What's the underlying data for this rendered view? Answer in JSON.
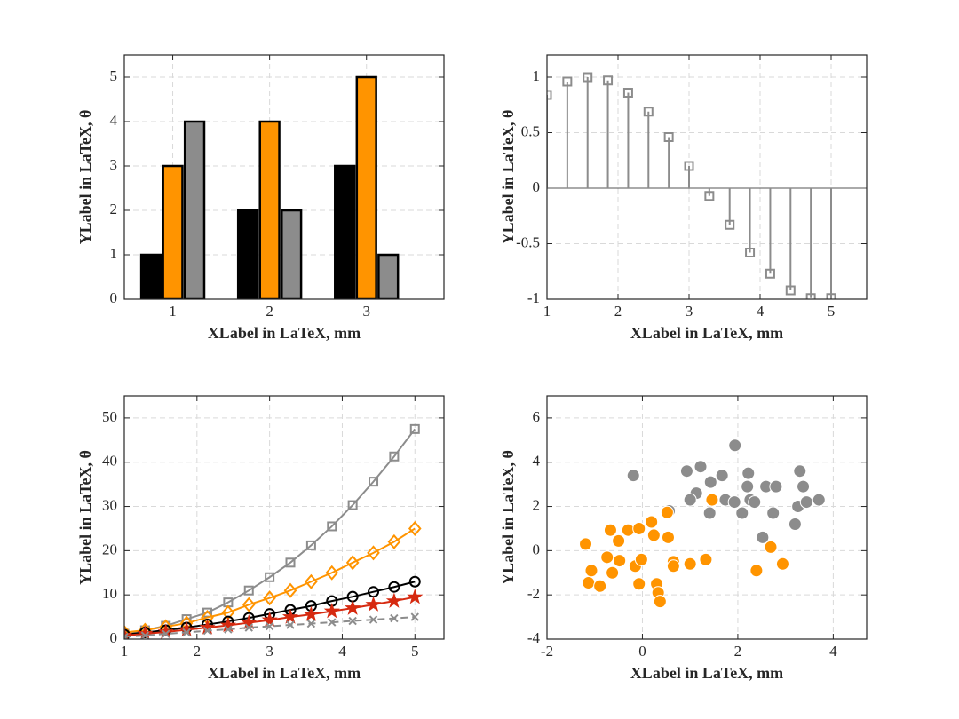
{
  "chart_data": [
    {
      "type": "bar",
      "xlabel": "XLabel in LaTeX, mm",
      "ylabel": "YLabel in LaTeX, θ",
      "x": [
        1,
        2,
        3
      ],
      "series": [
        {
          "color": "#000000",
          "values": [
            1,
            2,
            3
          ]
        },
        {
          "color": "#ff9400",
          "values": [
            3,
            4,
            5
          ]
        },
        {
          "color": "#8c8c8c",
          "values": [
            4,
            2,
            1
          ]
        }
      ],
      "xlim": [
        0.5,
        3.8
      ],
      "ylim": [
        0,
        5.5
      ],
      "xticks": [
        1,
        2,
        3
      ],
      "yticks": [
        0,
        1,
        2,
        3,
        4,
        5
      ],
      "grid": true
    },
    {
      "type": "stem",
      "xlabel": "XLabel in LaTeX, mm",
      "ylabel": "YLabel in LaTeX, θ",
      "color": "#8c8c8c",
      "marker": "square",
      "x": [
        1,
        1.2857,
        1.5714,
        1.8571,
        2.1429,
        2.4286,
        2.7143,
        3,
        3.2857,
        3.5714,
        3.8571,
        4.1429,
        4.4286,
        4.7143,
        5
      ],
      "values": [
        0.84,
        0.96,
        1.0,
        0.97,
        0.86,
        0.69,
        0.46,
        0.2,
        -0.07,
        -0.33,
        -0.58,
        -0.77,
        -0.92,
        -0.99,
        -0.99
      ],
      "xlim": [
        1,
        5.5
      ],
      "ylim": [
        -1,
        1.2
      ],
      "xticks": [
        1,
        2,
        3,
        4,
        5
      ],
      "yticks": [
        -1,
        -0.5,
        0,
        0.5,
        1
      ],
      "grid": true
    },
    {
      "type": "line",
      "xlabel": "XLabel in LaTeX, mm",
      "ylabel": "YLabel in LaTeX, θ",
      "x": [
        1,
        1.2857,
        1.5714,
        1.8571,
        2.1429,
        2.4286,
        2.7143,
        3,
        3.2857,
        3.5714,
        3.8571,
        4.1429,
        4.4286,
        4.7143,
        5
      ],
      "series": [
        {
          "color": "#8c8c8c",
          "marker": "square",
          "dash": "solid",
          "values": [
            1.2,
            2,
            3,
            4.5,
            6,
            8.3,
            11,
            14,
            17.3,
            21.2,
            25.5,
            30.3,
            35.6,
            41.3,
            47.5
          ]
        },
        {
          "color": "#ff9400",
          "marker": "diamond",
          "dash": "solid",
          "values": [
            1.5,
            2,
            2.8,
            3.6,
            4.9,
            6,
            7.8,
            9.3,
            11,
            13,
            15,
            17.3,
            19.5,
            22,
            25
          ]
        },
        {
          "color": "#000000",
          "marker": "circle",
          "dash": "solid",
          "values": [
            1,
            1.5,
            2,
            2.6,
            3.3,
            4,
            4.8,
            5.7,
            6.6,
            7.5,
            8.6,
            9.6,
            10.7,
            11.8,
            13
          ]
        },
        {
          "color": "#d62a10",
          "marker": "star",
          "dash": "solid",
          "values": [
            0.8,
            1.2,
            1.6,
            2.1,
            2.6,
            3.1,
            3.7,
            4.3,
            5,
            5.6,
            6.3,
            7,
            7.8,
            8.6,
            9.5
          ]
        },
        {
          "color": "#8c8c8c",
          "marker": "x",
          "dash": "dashed",
          "values": [
            0.5,
            0.8,
            1.2,
            1.5,
            1.9,
            2.2,
            2.6,
            2.9,
            3.2,
            3.5,
            3.8,
            4.1,
            4.4,
            4.7,
            5.0
          ]
        }
      ],
      "xlim": [
        1,
        5.4
      ],
      "ylim": [
        0,
        55
      ],
      "xticks": [
        1,
        2,
        3,
        4,
        5
      ],
      "yticks": [
        0,
        10,
        20,
        30,
        40,
        50
      ],
      "grid": true
    },
    {
      "type": "scatter",
      "xlabel": "XLabel in LaTeX, mm",
      "ylabel": "YLabel in LaTeX, θ",
      "series": [
        {
          "color": "#8c8c8c",
          "x": [
            -0.19,
            0.93,
            1.22,
            1.43,
            1.67,
            1.94,
            2.22,
            1.13,
            1.0,
            1.74,
            1.93,
            2.09,
            1.41,
            0.56,
            2.26,
            2.35,
            2.59,
            2.8,
            2.52,
            2.74,
            3.3,
            3.37,
            3.26,
            3.44,
            3.7,
            3.2,
            2.2
          ],
          "values": [
            3.4,
            3.6,
            3.8,
            3.1,
            3.4,
            4.76,
            3.5,
            2.6,
            2.3,
            2.3,
            2.2,
            1.7,
            1.7,
            1.8,
            2.3,
            2.2,
            2.9,
            2.9,
            0.6,
            1.7,
            3.6,
            2.9,
            2.0,
            2.2,
            2.3,
            1.2,
            2.9
          ]
        },
        {
          "color": "#ff9400",
          "x": [
            -1.19,
            -1.07,
            -1.13,
            -0.89,
            -0.67,
            -0.5,
            -0.74,
            -0.48,
            -0.63,
            -0.3,
            -0.07,
            0.19,
            0.52,
            0.24,
            0.54,
            -0.15,
            -0.02,
            -0.07,
            0.3,
            0.33,
            0.37,
            0.65,
            0.65,
            1.0,
            1.33,
            1.46,
            2.69,
            2.39,
            2.94
          ],
          "values": [
            0.3,
            -0.9,
            -1.45,
            -1.6,
            0.93,
            0.44,
            -0.3,
            -0.45,
            -1.0,
            0.93,
            1.0,
            1.3,
            1.73,
            0.7,
            0.6,
            -0.7,
            -0.4,
            -1.5,
            -1.5,
            -1.9,
            -2.3,
            -0.5,
            -0.7,
            -0.6,
            -0.4,
            2.3,
            0.16,
            -0.9,
            -0.6
          ]
        }
      ],
      "xlim": [
        -2,
        4.7
      ],
      "ylim": [
        -4,
        7
      ],
      "xticks": [
        -2,
        0,
        2,
        4
      ],
      "yticks": [
        -4,
        -2,
        0,
        2,
        4,
        6
      ],
      "grid": true
    }
  ]
}
